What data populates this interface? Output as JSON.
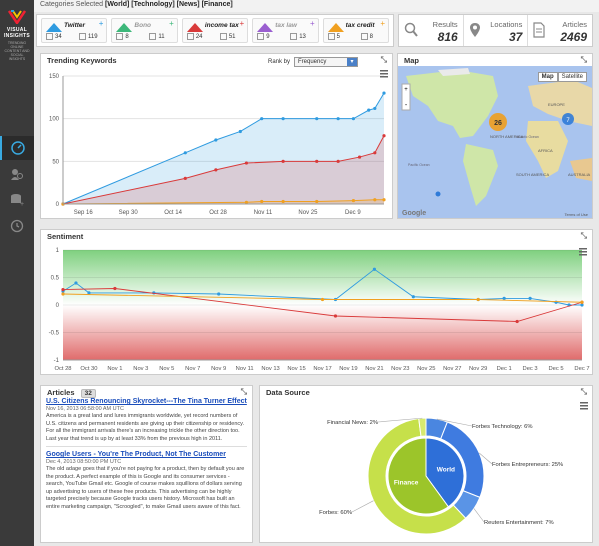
{
  "brand": {
    "name": "VISUAL INSIGHTS",
    "tagline": "TRENDING ONLINE CONTENT AND SOCIAL INSIGHTS"
  },
  "categories": {
    "label": "Categories Selected",
    "items": "[World] [Technology] [News] [Finance]"
  },
  "filters": [
    {
      "title": "Twitter",
      "color": "#2f9be0",
      "a": "34",
      "b": "119"
    },
    {
      "title": "Bono",
      "color": "#3db87a",
      "a": "8",
      "b": "11"
    },
    {
      "title": "income tax",
      "color": "#d93a3a",
      "a": "24",
      "b": "51"
    },
    {
      "title": "tax law",
      "color": "#9a5fd0",
      "a": "9",
      "b": "13"
    },
    {
      "title": "tax credit",
      "color": "#f0a020",
      "a": "5",
      "b": "8"
    }
  ],
  "stats": [
    {
      "label": "Results",
      "value": "816"
    },
    {
      "label": "Locations",
      "value": "37"
    },
    {
      "label": "Articles",
      "value": "2469"
    }
  ],
  "trending": {
    "title": "Trending Keywords",
    "rank_label": "Rank by",
    "rank_value": "Frequency",
    "chart_data": {
      "type": "area",
      "categories": [
        "Sep 16",
        "Sep 30",
        "Oct 14",
        "Oct 28",
        "Nov 11",
        "Nov 25",
        "Dec 9"
      ],
      "ylim": [
        0,
        150
      ],
      "yticks": [
        0,
        50,
        100,
        150
      ],
      "series": [
        {
          "name": "Twitter",
          "color": "#2f9be0",
          "x": [
            0,
            0.4,
            0.5,
            0.58,
            0.65,
            0.72,
            0.83,
            0.9,
            0.95,
            1.0,
            1.02,
            1.05
          ],
          "values": [
            0,
            60,
            75,
            85,
            100,
            100,
            100,
            100,
            100,
            110,
            112,
            130
          ]
        },
        {
          "name": "income tax",
          "color": "#d93a3a",
          "x": [
            0,
            0.4,
            0.5,
            0.6,
            0.72,
            0.83,
            0.9,
            0.97,
            1.02,
            1.05
          ],
          "values": [
            0,
            30,
            40,
            48,
            50,
            50,
            50,
            55,
            60,
            80
          ]
        },
        {
          "name": "tax credit",
          "color": "#f0a020",
          "x": [
            0,
            0.6,
            0.65,
            0.72,
            0.83,
            0.95,
            1.02,
            1.05
          ],
          "values": [
            0,
            2,
            3,
            3,
            3,
            4,
            5,
            5
          ]
        }
      ]
    }
  },
  "map": {
    "title": "Map",
    "btn_map": "Map",
    "btn_sat": "Satellite",
    "cluster": "26",
    "cluster2": "7",
    "labels": [
      "NORTH AMERICA",
      "SOUTH AMERICA",
      "EUROPE",
      "AFRICA",
      "AUSTRALIA",
      "Atlantic Ocean",
      "Pacific Ocean"
    ],
    "brand": "Google",
    "terms": "Terms of Use"
  },
  "sentiment": {
    "title": "Sentiment",
    "chart_data": {
      "type": "line",
      "categories": [
        "Oct 28",
        "Oct 30",
        "Nov 1",
        "Nov 3",
        "Nov 5",
        "Nov 7",
        "Nov 9",
        "Nov 11",
        "Nov 13",
        "Nov 15",
        "Nov 17",
        "Nov 19",
        "Nov 21",
        "Nov 23",
        "Nov 25",
        "Nov 27",
        "Nov 29",
        "Dec 1",
        "Dec 3",
        "Dec 5",
        "Dec 7"
      ],
      "ylim": [
        -1,
        1
      ],
      "yticks": [
        -1,
        -0.5,
        0,
        0.5,
        1
      ],
      "series": [
        {
          "name": "Twitter",
          "color": "#2f9be0",
          "x": [
            0,
            0.5,
            1,
            3.5,
            6,
            10.5,
            12,
            13.5,
            16,
            17,
            18,
            19,
            19.5,
            20
          ],
          "values": [
            0.25,
            0.4,
            0.22,
            0.22,
            0.2,
            0.1,
            0.65,
            0.15,
            0.1,
            0.12,
            0.12,
            0.05,
            0,
            0
          ]
        },
        {
          "name": "income tax",
          "color": "#d93a3a",
          "x": [
            0,
            2,
            10.5,
            17.5,
            20
          ],
          "values": [
            0.28,
            0.3,
            -0.2,
            -0.3,
            0.05
          ]
        },
        {
          "name": "tax credit",
          "color": "#f0a020",
          "x": [
            0,
            10,
            16,
            20
          ],
          "values": [
            0.2,
            0.1,
            0.1,
            0.05
          ]
        }
      ]
    }
  },
  "articles": {
    "title": "Articles",
    "count": "32",
    "items": [
      {
        "title": "U.S. Citizens Renouncing Skyrocket---The Tina Turner Effect",
        "date": "Nov 16, 2013 06:58:00 AM UTC",
        "body": "America is a great land and lures immigrants worldwide, yet record numbers of U.S. citizens and permanent residents are giving up their citizenship or residency. For all the immigrant arrivals there's an increasing trickle the other direction too. Last year that trend is up by at least 33% from the previous high in 2011."
      },
      {
        "title": "Google Users - You're The Product, Not The Customer",
        "date": "Dec 4, 2013 08:50:00 PM UTC",
        "body": "The old adage goes that if you're not paying for a product, then by default you are the product. A perfect example of this is Google and its consumer services - search, YouTube Gmail etc. Google of course makes squillions of dollars serving up advertising to users of these free products. This advertising can be highly targeted precisely because Google tracks users history. Microsoft has built an entire marketing campaign, \"Scroogled\", to make Gmail users aware of this fact."
      }
    ]
  },
  "datasource": {
    "title": "Data Source",
    "chart_data": {
      "type": "pie",
      "inner": [
        {
          "name": "World",
          "value": 40,
          "color": "#2e6fd8"
        },
        {
          "name": "Finance",
          "value": 60,
          "color": "#9cc52a"
        }
      ],
      "outer": [
        {
          "name": "Forbes Technology: 6%",
          "value": 6,
          "color": "#4a86e0"
        },
        {
          "name": "Forbes Entrepreneurs: 25%",
          "value": 25,
          "color": "#3f7be0"
        },
        {
          "name": "Reuters Entertainment: 7%",
          "value": 7,
          "color": "#5a94e6"
        },
        {
          "name": "Forbes: 60%",
          "value": 60,
          "color": "#c6e04a"
        },
        {
          "name": "Financial News: 2%",
          "value": 2,
          "color": "#d7ea6f"
        }
      ]
    }
  }
}
